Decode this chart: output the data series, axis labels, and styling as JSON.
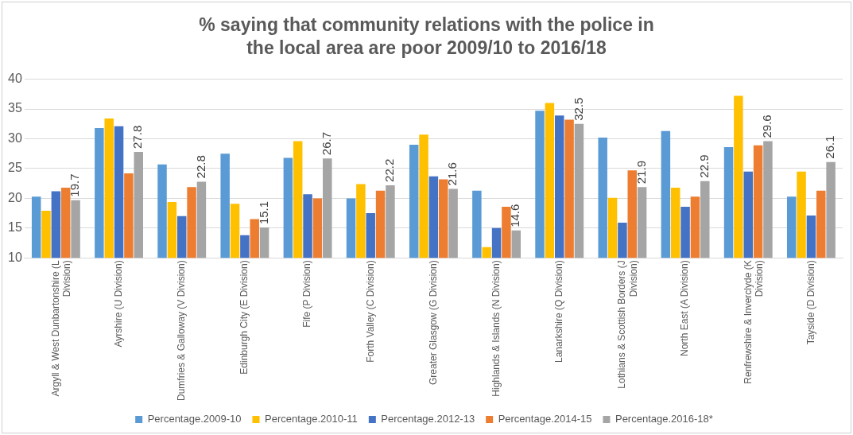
{
  "chart_data": {
    "type": "bar",
    "title": "% saying that community relations with the police in the local area are poor 2009/10 to 2016/18",
    "categories": [
      "Argyll & West Dunbartonshire (L Division)",
      "Ayrshire (U Division)",
      "Dumfries & Galloway (V Division)",
      "Edinburgh City (E Division)",
      "Fife (P Division)",
      "Forth Valley (C Division)",
      "Greater Glasgow (G Division)",
      "Highlands & Islands (N Division)",
      "Lanarkshire (Q Division)",
      "Lothians & Scottish Borders (J Division)",
      "North East (A Division)",
      "Renfrewshire & Inverclyde (K Division)",
      "Tayside (D Division)"
    ],
    "series": [
      {
        "name": "Percentage.2009-10",
        "color": "#5b9bd5",
        "values": [
          20.3,
          31.8,
          25.7,
          27.5,
          26.8,
          20.0,
          29.0,
          21.3,
          34.7,
          30.2,
          31.3,
          28.6,
          20.3
        ]
      },
      {
        "name": "Percentage.2010-11",
        "color": "#ffc000",
        "values": [
          17.9,
          33.4,
          19.4,
          19.1,
          29.6,
          22.4,
          30.7,
          11.8,
          36.0,
          20.1,
          21.8,
          37.2,
          24.5
        ]
      },
      {
        "name": "Percentage.2012-13",
        "color": "#4472c4",
        "values": [
          21.2,
          32.1,
          17.0,
          13.8,
          20.7,
          17.5,
          23.7,
          15.0,
          33.9,
          15.9,
          18.6,
          24.5,
          17.1
        ]
      },
      {
        "name": "Percentage.2014-15",
        "color": "#ed7d31",
        "values": [
          21.8,
          24.2,
          21.9,
          16.5,
          20.0,
          21.3,
          23.2,
          18.6,
          33.2,
          24.7,
          20.3,
          28.9,
          21.3
        ]
      },
      {
        "name": "Percentage.2016-18*",
        "color": "#a5a5a5",
        "values": [
          19.7,
          27.8,
          22.8,
          15.1,
          26.7,
          22.2,
          21.6,
          14.6,
          32.5,
          21.9,
          22.9,
          29.6,
          26.1
        ],
        "value_labels": [
          "19.7",
          "27.8",
          "22.8",
          "15.1",
          "26.7",
          "22.2",
          "21.6",
          "14.6",
          "32.5",
          "21.9",
          "22.9",
          "29.6",
          "26.1"
        ]
      }
    ],
    "ylim": [
      10,
      40
    ],
    "yticks": [
      10,
      15,
      20,
      25,
      30,
      35,
      40
    ],
    "grid": "y",
    "legend": "bottom"
  }
}
